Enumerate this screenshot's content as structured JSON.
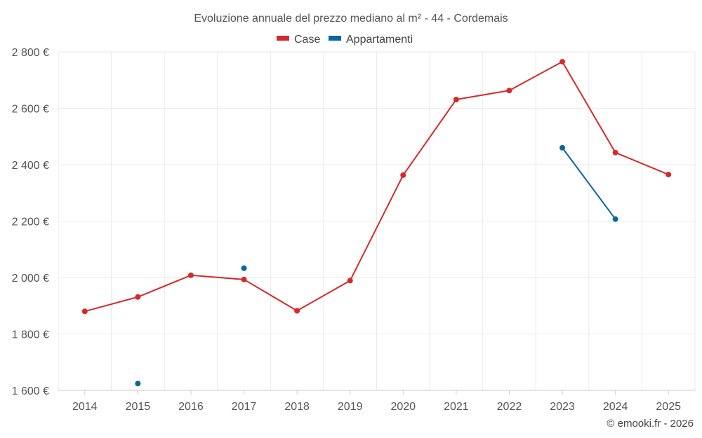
{
  "chart_data": {
    "type": "line",
    "title": "Evoluzione annuale del prezzo mediano al m² - 44 - Cordemais",
    "categories": [
      "2014",
      "2015",
      "2016",
      "2017",
      "2018",
      "2019",
      "2020",
      "2021",
      "2022",
      "2023",
      "2024",
      "2025"
    ],
    "series": [
      {
        "name": "Case",
        "color": "#d42a2a",
        "values": [
          1880,
          1931,
          2008,
          1993,
          1882,
          1989,
          2363,
          2631,
          2663,
          2765,
          2443,
          2365
        ]
      },
      {
        "name": "Appartamenti",
        "color": "#0866a0",
        "values": [
          null,
          1624,
          null,
          2033,
          null,
          null,
          null,
          null,
          null,
          2460,
          2207,
          null
        ]
      }
    ],
    "ylim": [
      1600,
      2800
    ],
    "yticks": [
      1600,
      1800,
      2000,
      2200,
      2400,
      2600,
      2800
    ],
    "ytick_labels": [
      "1 600 €",
      "1 800 €",
      "2 000 €",
      "2 200 €",
      "2 400 €",
      "2 600 €",
      "2 800 €"
    ],
    "grid": true,
    "legend_position": "top-center",
    "xlabel": "",
    "ylabel": ""
  },
  "credit": "© emooki.fr - 2026"
}
